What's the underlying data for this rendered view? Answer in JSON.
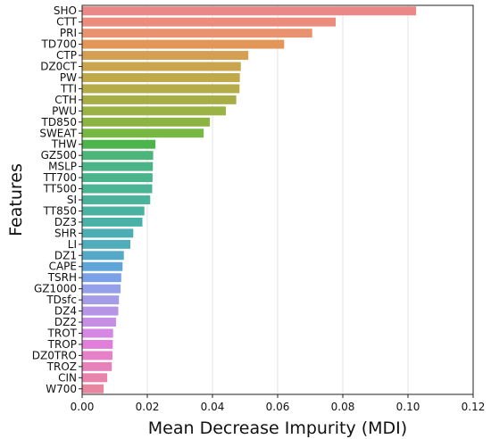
{
  "chart_data": {
    "type": "bar",
    "orientation": "horizontal",
    "title": "",
    "xlabel": "Mean Decrease Impurity (MDI)",
    "ylabel": "Features",
    "xlim": [
      0,
      0.12
    ],
    "xticks": [
      0.0,
      0.02,
      0.04,
      0.06,
      0.08,
      0.1,
      0.12
    ],
    "xtick_labels": [
      "0.00",
      "0.02",
      "0.04",
      "0.06",
      "0.08",
      "0.10",
      "0.12"
    ],
    "grid": "vertical lines",
    "legend": "none",
    "categories": [
      "SHO",
      "CTT",
      "PRI",
      "TD700",
      "CTP",
      "DZ0CT",
      "PW",
      "TTI",
      "CTH",
      "PWU",
      "TD850",
      "SWEAT",
      "THW",
      "GZ500",
      "MSLP",
      "TT700",
      "TT500",
      "SI",
      "TT850",
      "DZ3",
      "SHR",
      "LI",
      "DZ1",
      "CAPE",
      "TSRH",
      "GZ1000",
      "TDsfc",
      "DZ4",
      "DZ2",
      "TROT",
      "TROP",
      "DZ0TRO",
      "TROZ",
      "CIN",
      "W700"
    ],
    "values": [
      0.1025,
      0.0778,
      0.0706,
      0.062,
      0.051,
      0.0487,
      0.0484,
      0.0483,
      0.0473,
      0.0441,
      0.0392,
      0.0373,
      0.0225,
      0.0218,
      0.0217,
      0.0216,
      0.0215,
      0.0209,
      0.0191,
      0.0185,
      0.0157,
      0.0148,
      0.0128,
      0.0124,
      0.012,
      0.0118,
      0.0113,
      0.0111,
      0.0104,
      0.0095,
      0.0094,
      0.0093,
      0.0091,
      0.0077,
      0.0066
    ],
    "colors": [
      "#eb8787",
      "#eb8c7c",
      "#e89270",
      "#e39657",
      "#d49f52",
      "#c9a64e",
      "#bfa94a",
      "#b5ab49",
      "#a8ae46",
      "#9bb244",
      "#8bb443",
      "#76b841",
      "#4bb54c",
      "#4db47a",
      "#4bb486",
      "#4ab48d",
      "#4ab495",
      "#4ab39b",
      "#4ab2a1",
      "#4ab1a9",
      "#4caeb3",
      "#4eacbb",
      "#54a8c8",
      "#5fa4d6",
      "#7ba1e6",
      "#94a0ea",
      "#a59ce8",
      "#b695e6",
      "#c78ee5",
      "#d686e3",
      "#e17ed9",
      "#e580c9",
      "#e682b9",
      "#e884ab",
      "#e8869f"
    ]
  }
}
